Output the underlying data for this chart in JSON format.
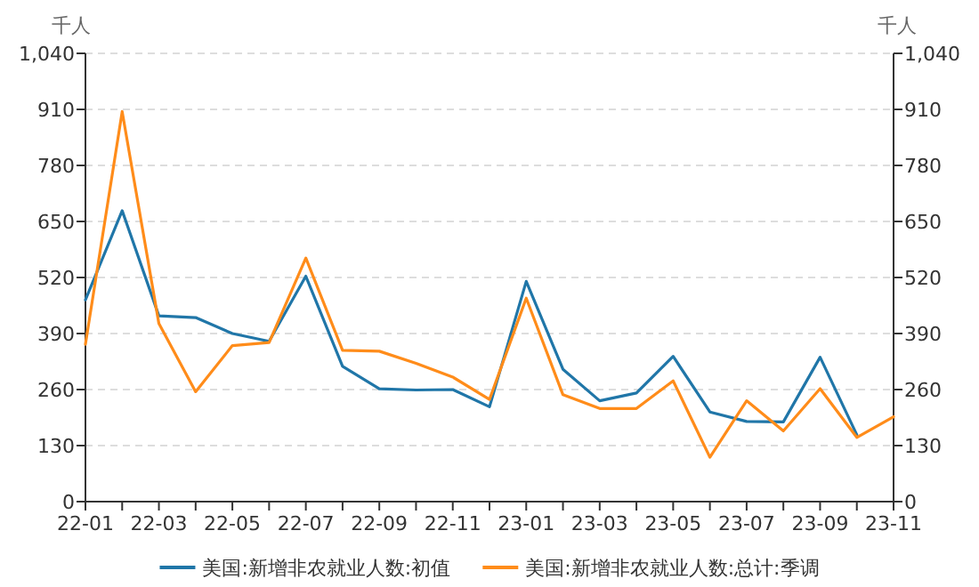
{
  "chart_data": {
    "type": "line",
    "ylabel": "千人",
    "y2label": "千人",
    "categories": [
      "22-01",
      null,
      "22-03",
      null,
      "22-05",
      null,
      "22-07",
      null,
      "22-09",
      null,
      "22-11",
      null,
      "23-01",
      null,
      "23-03",
      null,
      "23-05",
      null,
      "23-07",
      null,
      "23-09",
      null,
      "23-11"
    ],
    "series": [
      {
        "name": "美国:新增非农就业人数:初值",
        "color": "#2076a8",
        "values": [
          468,
          675,
          431,
          427,
          390,
          372,
          523,
          314,
          262,
          259,
          260,
          220,
          511,
          307,
          234,
          252,
          337,
          208,
          186,
          185,
          335,
          155,
          null
        ]
      },
      {
        "name": "美国:新增非农就业人数:总计:季调",
        "color": "#ff8c1a",
        "values": [
          365,
          905,
          413,
          255,
          362,
          369,
          565,
          351,
          349,
          321,
          289,
          237,
          472,
          248,
          216,
          216,
          280,
          103,
          234,
          164,
          262,
          149,
          197
        ]
      }
    ],
    "ylim": [
      0,
      1040
    ],
    "yticks": [
      0,
      130,
      260,
      390,
      520,
      650,
      780,
      910,
      {
        "value": 1040,
        "label": "1,040"
      }
    ],
    "y2lim": [
      0,
      1040
    ],
    "y2ticks": [
      0,
      130,
      260,
      390,
      520,
      650,
      780,
      910,
      {
        "value": 1040,
        "label": "1,040"
      }
    ],
    "grid": "y",
    "legend": "bottom",
    "marker": "none",
    "line_style": "solid"
  }
}
